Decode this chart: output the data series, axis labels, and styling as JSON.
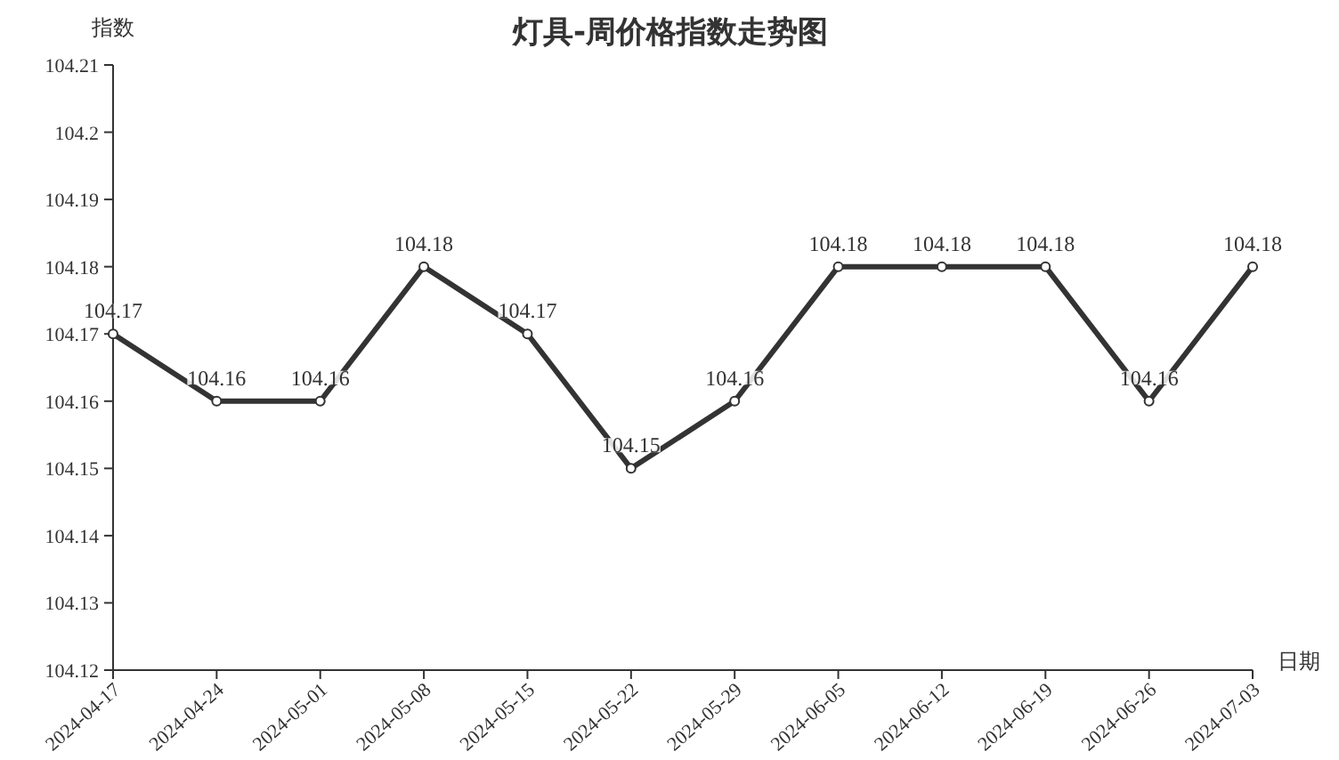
{
  "chart_data": {
    "type": "line",
    "title": "灯具-周价格指数走势图",
    "xlabel": "日期",
    "ylabel": "指数",
    "categories": [
      "2024-04-17",
      "2024-04-24",
      "2024-05-01",
      "2024-05-08",
      "2024-05-15",
      "2024-05-22",
      "2024-05-29",
      "2024-06-05",
      "2024-06-12",
      "2024-06-19",
      "2024-06-26",
      "2024-07-03"
    ],
    "series": [
      {
        "color": "#333333",
        "values": [
          104.17,
          104.16,
          104.16,
          104.18,
          104.17,
          104.15,
          104.16,
          104.18,
          104.18,
          104.18,
          104.16,
          104.18
        ]
      }
    ],
    "ylim": [
      104.12,
      104.21
    ],
    "yticks": [
      104.12,
      104.13,
      104.14,
      104.15,
      104.16,
      104.17,
      104.18,
      104.19,
      104.2,
      104.21
    ],
    "data_labels": true,
    "grid": false,
    "marker": "circle",
    "line_style": "solid"
  }
}
